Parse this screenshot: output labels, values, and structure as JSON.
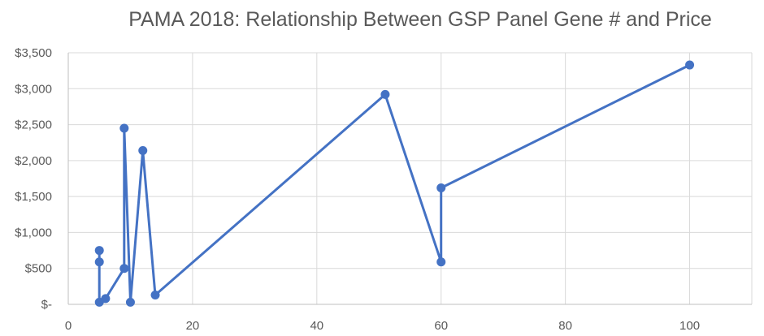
{
  "chart_data": {
    "type": "line",
    "title": "PAMA 2018: Relationship Between GSP Panel Gene # and Price",
    "xlabel": "",
    "ylabel": "",
    "xlim": [
      0,
      110
    ],
    "ylim": [
      0,
      3500
    ],
    "x_ticks": [
      0,
      20,
      40,
      60,
      80,
      100
    ],
    "x_tick_labels": [
      "0",
      "20",
      "40",
      "60",
      "80",
      "100"
    ],
    "y_ticks": [
      0,
      500,
      1000,
      1500,
      2000,
      2500,
      3000,
      3500
    ],
    "y_tick_labels": [
      "$-",
      "$500",
      "$1,000",
      "$1,500",
      "$2,000",
      "$2,500",
      "$3,000",
      "$3,500"
    ],
    "grid": true,
    "line_color": "#4472c4",
    "series": [
      {
        "x": [
          5,
          5,
          5,
          6,
          9,
          9,
          10,
          12,
          14,
          51,
          60,
          60,
          100
        ],
        "y": [
          750,
          590,
          30,
          80,
          500,
          2450,
          30,
          2140,
          130,
          2920,
          590,
          1620,
          3330
        ]
      }
    ]
  }
}
